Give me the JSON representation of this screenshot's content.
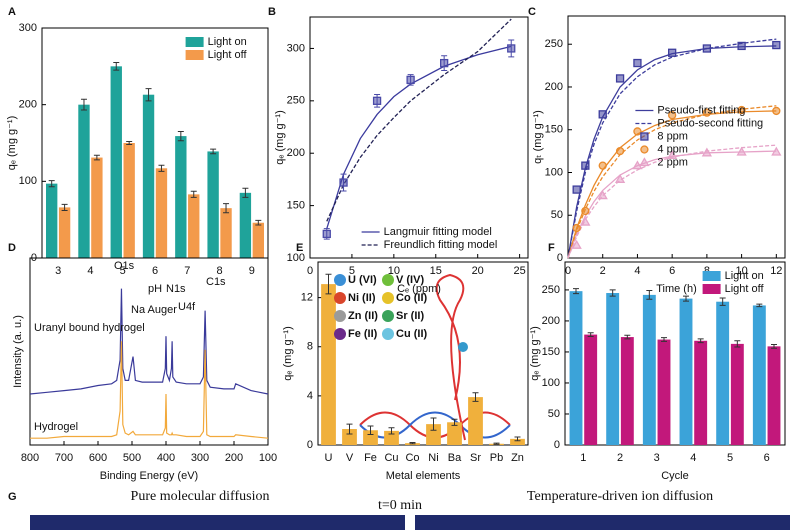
{
  "chart_data": [
    {
      "type": "bar",
      "label": "A",
      "xlabel": "pH",
      "ylabel": "qₑ (mg g⁻¹)",
      "categories": [
        "3",
        "4",
        "5",
        "6",
        "7",
        "8",
        "9"
      ],
      "series": [
        {
          "name": "Light on",
          "color": "#1fa39a",
          "values": [
            97,
            200,
            250,
            213,
            159,
            139,
            85
          ],
          "errors": [
            4,
            7,
            5,
            8,
            6,
            3,
            6
          ]
        },
        {
          "name": "Light off",
          "color": "#f39a4b",
          "values": [
            66,
            131,
            150,
            117,
            83,
            65,
            46
          ],
          "errors": [
            4,
            3,
            2,
            4,
            4,
            6,
            3
          ]
        }
      ],
      "ylim": [
        0,
        300
      ],
      "yticks": [
        0,
        100,
        200,
        300
      ],
      "legend": "upper right"
    },
    {
      "type": "scatter",
      "label": "B",
      "xlabel": "Cₑ (ppm)",
      "ylabel": "qₑ (mg g⁻¹)",
      "x": [
        2,
        4,
        8,
        12,
        16,
        24
      ],
      "series": [
        {
          "marker": "square",
          "color": "#4a4aa8",
          "values": [
            123,
            172,
            250,
            270,
            286,
            300
          ],
          "errors": [
            5,
            8,
            6,
            5,
            7,
            8
          ]
        }
      ],
      "fit_x": [
        2,
        4,
        6,
        8,
        10,
        12,
        16,
        20,
        24
      ],
      "fits": [
        {
          "name": "Langmuir fitting model",
          "style": "solid",
          "curves": [
            {
              "color": "#3b3b9e",
              "values": [
                128,
                180,
                214,
                237,
                254,
                266,
                283,
                294,
                302
              ]
            }
          ]
        },
        {
          "name": "Freundlich fitting model",
          "style": "dashed",
          "curves": [
            {
              "color": "#222255",
              "values": [
                135,
                170,
                196,
                217,
                234,
                250,
                275,
                297,
                328
              ]
            }
          ]
        }
      ],
      "xlim": [
        0,
        26
      ],
      "xticks": [
        0,
        5,
        10,
        15,
        20,
        25
      ],
      "ylim": [
        100,
        330
      ],
      "yticks": [
        100,
        150,
        200,
        250,
        300
      ],
      "legend": "lower right"
    },
    {
      "type": "scatter",
      "label": "C",
      "xlabel": "Time (h)",
      "ylabel": "qₜ (mg g⁻¹)",
      "x": [
        0.5,
        1,
        2,
        3,
        4,
        6,
        8,
        10,
        12
      ],
      "series": [
        {
          "name": "8 ppm",
          "marker": "square",
          "color": "#3d3d9c",
          "values": [
            80,
            108,
            168,
            210,
            228,
            240,
            245,
            248,
            249
          ]
        },
        {
          "name": "4 ppm",
          "marker": "circle",
          "color": "#ea8a2a",
          "values": [
            35,
            55,
            108,
            125,
            148,
            167,
            170,
            173,
            172
          ]
        },
        {
          "name": "2 ppm",
          "marker": "triangle",
          "color": "#e6a3c8",
          "values": [
            15,
            42,
            73,
            92,
            108,
            120,
            123,
            124,
            124
          ]
        }
      ],
      "fit_x": [
        0,
        0.5,
        1,
        1.5,
        2,
        3,
        4,
        5,
        6,
        8,
        10,
        12
      ],
      "fits": [
        {
          "name": "Pseudo-first fitting",
          "style": "solid",
          "curves": [
            {
              "color": "#3d3d9c",
              "values": [
                0,
                60,
                105,
                139,
                165,
                200,
                220,
                232,
                239,
                245,
                247,
                248
              ]
            },
            {
              "color": "#ea8a2a",
              "values": [
                0,
                35,
                62,
                85,
                103,
                129,
                145,
                155,
                162,
                168,
                171,
                172
              ]
            },
            {
              "color": "#e6a3c8",
              "values": [
                0,
                28,
                49,
                66,
                79,
                97,
                108,
                115,
                119,
                123,
                124,
                125
              ]
            }
          ]
        },
        {
          "name": "Pseudo-second fitting",
          "style": "dashed",
          "curves": [
            {
              "color": "#3d3d9c",
              "values": [
                0,
                55,
                100,
                133,
                158,
                192,
                212,
                226,
                235,
                245,
                251,
                256
              ]
            },
            {
              "color": "#ea8a2a",
              "values": [
                0,
                32,
                57,
                78,
                95,
                121,
                138,
                150,
                158,
                168,
                174,
                178
              ]
            },
            {
              "color": "#e6a3c8",
              "values": [
                0,
                25,
                45,
                60,
                73,
                91,
                103,
                112,
                118,
                125,
                129,
                132
              ]
            }
          ]
        }
      ],
      "xlim": [
        0,
        12.5
      ],
      "xticks": [
        0,
        2,
        4,
        6,
        8,
        10,
        12
      ],
      "ylim": [
        0,
        283
      ],
      "yticks": [
        0,
        50,
        100,
        150,
        200,
        250
      ],
      "legend": "center right"
    },
    {
      "type": "line",
      "label": "D",
      "xlabel": "Binding Energy (eV)",
      "ylabel": "Intensity (a. u.)",
      "x": [
        800,
        750,
        700,
        650,
        600,
        560,
        545,
        535,
        531,
        527,
        520,
        510,
        497,
        490,
        470,
        440,
        410,
        402,
        400,
        398,
        390,
        384,
        382,
        380,
        370,
        340,
        300,
        290,
        285,
        280,
        270,
        230,
        200,
        195,
        150,
        100
      ],
      "series": [
        {
          "name": "Uranyl bound hydrogel",
          "color": "#3a3a9a",
          "values": [
            30,
            31,
            32,
            33,
            35,
            36,
            38,
            50,
            92,
            45,
            38,
            38,
            52,
            38,
            37,
            37,
            37,
            45,
            64,
            42,
            38,
            45,
            61,
            40,
            37,
            36,
            36,
            40,
            79,
            38,
            34,
            33,
            33,
            36,
            32,
            30
          ]
        },
        {
          "name": "Hydrogel",
          "color": "#f2a93b",
          "values": [
            4,
            4,
            5,
            5,
            5,
            5,
            6,
            20,
            61,
            12,
            7,
            6,
            8,
            6,
            6,
            6,
            6,
            10,
            30,
            7,
            6,
            6,
            7,
            6,
            6,
            5,
            5,
            8,
            56,
            6,
            5,
            5,
            5,
            6,
            5,
            4
          ]
        }
      ],
      "annotations": [
        "O1s",
        "Na Auger",
        "N1s",
        "U4f",
        "C1s"
      ],
      "xlim": [
        800,
        100
      ],
      "xticks": [
        800,
        700,
        600,
        500,
        400,
        300,
        200,
        100
      ],
      "ylim": [
        0,
        110
      ]
    },
    {
      "type": "bar",
      "label": "E",
      "xlabel": "Metal elements",
      "ylabel": "qₑ (mg g⁻¹)",
      "categories": [
        "U",
        "V",
        "Fe",
        "Cu",
        "Co",
        "Ni",
        "Ba",
        "Sr",
        "Pb",
        "Zn"
      ],
      "color": "#f0b03c",
      "values": [
        13.1,
        1.3,
        1.2,
        1.15,
        0.15,
        1.7,
        1.85,
        3.9,
        0.1,
        0.5
      ],
      "errors": [
        0.8,
        0.4,
        0.35,
        0.25,
        0.05,
        0.5,
        0.25,
        0.35,
        0.05,
        0.15
      ],
      "inset_labels": [
        "U (VI)",
        "V (IV)",
        "Ni (II)",
        "Co (II)",
        "Zn (II)",
        "Sr (II)",
        "Fe (II)",
        "Cu (II)"
      ],
      "ylim": [
        0,
        14.9
      ],
      "yticks": [
        0,
        4,
        8,
        12
      ]
    },
    {
      "type": "bar",
      "label": "F",
      "xlabel": "Cycle",
      "ylabel": "qₑ (mg g⁻¹)",
      "categories": [
        "1",
        "2",
        "3",
        "4",
        "5",
        "6"
      ],
      "series": [
        {
          "name": "Light on",
          "color": "#3ba3d9",
          "values": [
            248,
            245,
            242,
            236,
            231,
            225
          ],
          "errors": [
            4,
            5,
            7,
            4,
            6,
            2
          ]
        },
        {
          "name": "Light off",
          "color": "#c2187b",
          "values": [
            178,
            174,
            170,
            168,
            163,
            159
          ],
          "errors": [
            3,
            3,
            3,
            3,
            5,
            3
          ]
        }
      ],
      "ylim": [
        0,
        295
      ],
      "yticks": [
        0,
        50,
        100,
        150,
        200,
        250
      ],
      "legend": "upper right"
    }
  ],
  "panel_g": {
    "label": "G",
    "left_title": "Pure molecular diffusion",
    "time": "t=0 min",
    "right_title": "Temperature-driven ion diffusion"
  }
}
